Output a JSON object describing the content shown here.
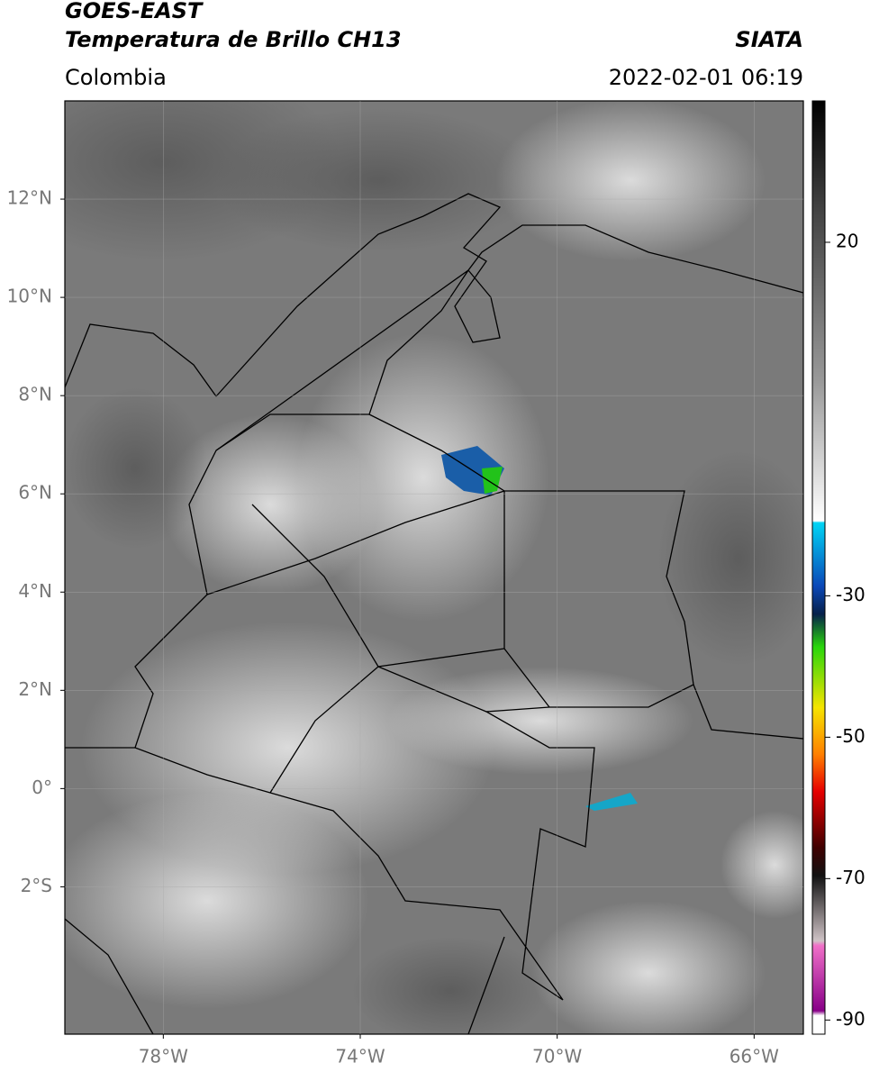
{
  "header": {
    "title": "GOES-EAST",
    "subtitle": "Temperatura de Brillo CH13",
    "source": "SIATA",
    "region": "Colombia",
    "timestamp": "2022-02-01 06:19"
  },
  "map": {
    "xlim": [
      -80,
      -65
    ],
    "ylim": [
      -5,
      14
    ],
    "xticks": [
      {
        "value": -78,
        "label": "78°W"
      },
      {
        "value": -74,
        "label": "74°W"
      },
      {
        "value": -70,
        "label": "70°W"
      },
      {
        "value": -66,
        "label": "66°W"
      }
    ],
    "yticks": [
      {
        "value": 12,
        "label": "12°N"
      },
      {
        "value": 10,
        "label": "10°N"
      },
      {
        "value": 8,
        "label": "8°N"
      },
      {
        "value": 6,
        "label": "6°N"
      },
      {
        "value": 4,
        "label": "4°N"
      },
      {
        "value": 2,
        "label": "2°N"
      },
      {
        "value": 0,
        "label": "0°"
      },
      {
        "value": -2,
        "label": "2°S"
      }
    ],
    "grid": true
  },
  "colorbar": {
    "ylim": [
      -92,
      40
    ],
    "yticks": [
      20,
      -30,
      -50,
      -70,
      -90
    ]
  }
}
